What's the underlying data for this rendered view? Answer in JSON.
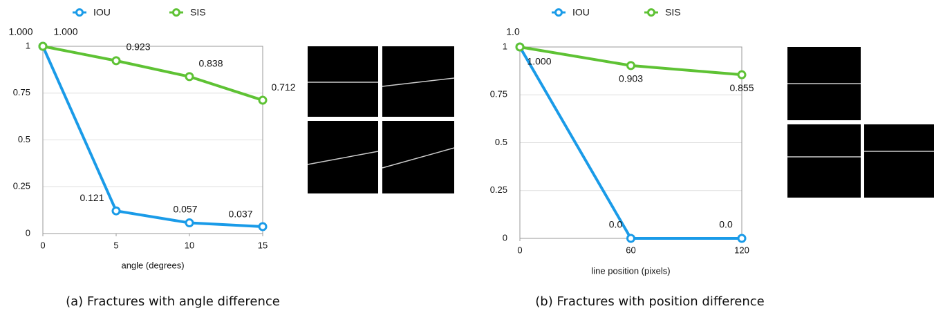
{
  "chart_data": [
    {
      "type": "line",
      "x": [
        0,
        5,
        10,
        15
      ],
      "xlim": [
        0,
        15
      ],
      "xticks": [
        0,
        5,
        10,
        15
      ],
      "ylim": [
        0,
        1
      ],
      "yticks": [
        0,
        0.25,
        0.5,
        0.75,
        1
      ],
      "grid": true,
      "xlabel": "angle (degrees)",
      "caption": "(a) Fractures with angle difference",
      "series": [
        {
          "name": "IOU",
          "color": "#1a9be8",
          "values": [
            1,
            0.121,
            0.057,
            0.037
          ],
          "value_labels": [
            "1.000",
            "0.121",
            "0.057",
            "0.037"
          ]
        },
        {
          "name": "SIS",
          "color": "#5ec234",
          "values": [
            1,
            0.923,
            0.838,
            0.712
          ],
          "value_labels": [
            "1.000",
            "0.923",
            "0.838",
            "0.712"
          ]
        }
      ]
    },
    {
      "type": "line",
      "x": [
        0,
        60,
        120
      ],
      "xlim": [
        0,
        120
      ],
      "xticks": [
        0,
        60,
        120
      ],
      "ylim": [
        0,
        1
      ],
      "yticks": [
        0,
        0.25,
        0.5,
        0.75,
        1
      ],
      "grid": true,
      "xlabel": "line position (pixels)",
      "caption": "(b) Fractures with position difference",
      "series": [
        {
          "name": "IOU",
          "color": "#1a9be8",
          "values": [
            1,
            0,
            0
          ],
          "value_labels": [
            "1.000",
            "0.0",
            "0.0"
          ]
        },
        {
          "name": "SIS",
          "color": "#5ec234",
          "values": [
            1,
            0.903,
            0.855
          ],
          "value_labels": [
            "1.0",
            "0.903",
            "0.855"
          ]
        }
      ]
    }
  ]
}
